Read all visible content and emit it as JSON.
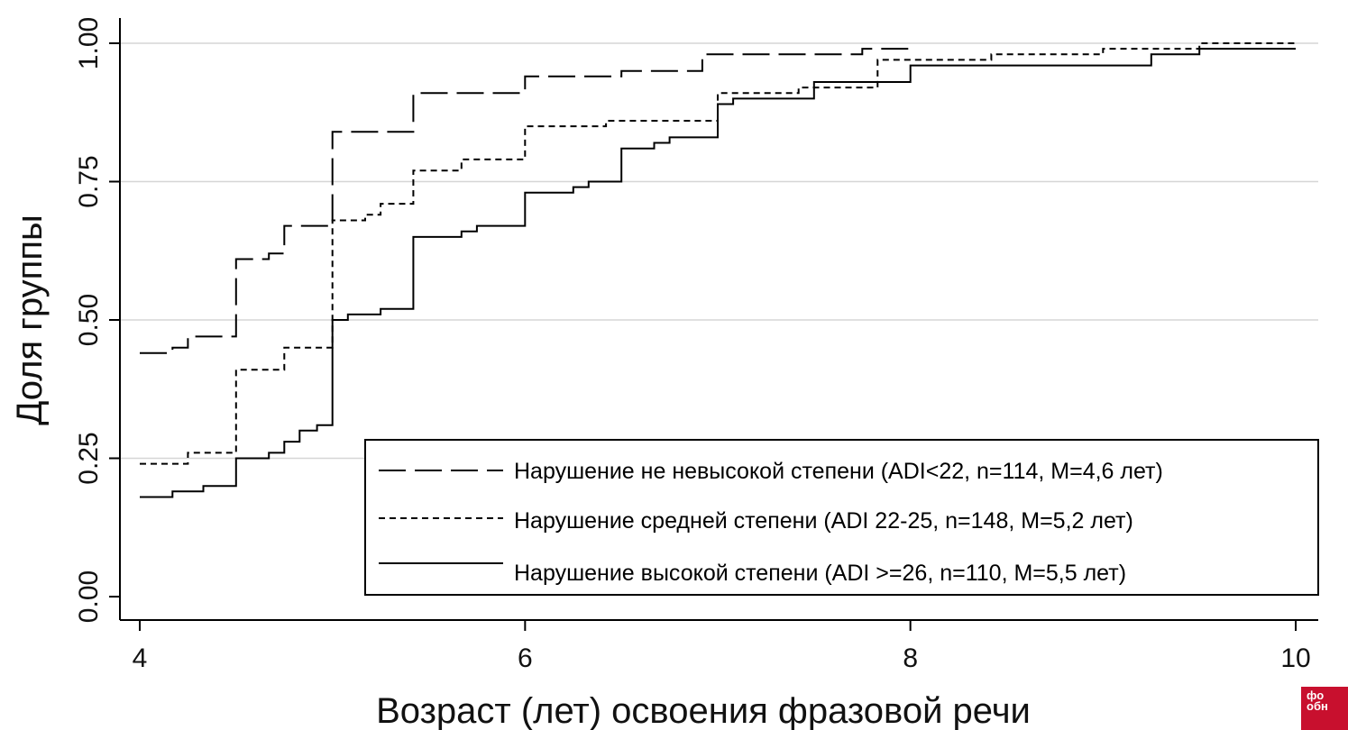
{
  "chart_data": {
    "type": "line",
    "step": true,
    "xlabel": "Возраст (лет) освоения фразовой речи",
    "ylabel": "Доля группы",
    "xlim": [
      4,
      10
    ],
    "ylim": [
      0,
      1
    ],
    "x_ticks": [
      "4",
      "6",
      "8",
      "10"
    ],
    "x_tick_values": [
      4,
      6,
      8,
      10
    ],
    "y_ticks": [
      "0.00",
      "0.25",
      "0.50",
      "0.75",
      "1.00"
    ],
    "y_tick_values": [
      0,
      0.25,
      0.5,
      0.75,
      1
    ],
    "grid": "horizontal",
    "legend_position": "bottom-right",
    "series": [
      {
        "name": "Нарушение не невысокой степени (ADI<22, n=114, M=4,6 лет)",
        "style": "long-dash",
        "points": [
          [
            4.0,
            0.44
          ],
          [
            4.17,
            0.44
          ],
          [
            4.17,
            0.45
          ],
          [
            4.25,
            0.45
          ],
          [
            4.25,
            0.47
          ],
          [
            4.5,
            0.47
          ],
          [
            4.5,
            0.61
          ],
          [
            4.67,
            0.61
          ],
          [
            4.67,
            0.62
          ],
          [
            4.75,
            0.62
          ],
          [
            4.75,
            0.67
          ],
          [
            5.0,
            0.67
          ],
          [
            5.0,
            0.84
          ],
          [
            5.42,
            0.84
          ],
          [
            5.42,
            0.91
          ],
          [
            6.0,
            0.91
          ],
          [
            6.0,
            0.94
          ],
          [
            6.5,
            0.94
          ],
          [
            6.5,
            0.95
          ],
          [
            6.92,
            0.95
          ],
          [
            6.92,
            0.98
          ],
          [
            7.75,
            0.98
          ],
          [
            7.75,
            0.99
          ],
          [
            8.0,
            0.99
          ],
          [
            8.0,
            1.0
          ]
        ]
      },
      {
        "name": "Нарушение средней степени (ADI 22-25, n=148, M=5,2 лет)",
        "style": "short-dash",
        "points": [
          [
            4.0,
            0.24
          ],
          [
            4.25,
            0.24
          ],
          [
            4.25,
            0.26
          ],
          [
            4.5,
            0.26
          ],
          [
            4.5,
            0.41
          ],
          [
            4.75,
            0.41
          ],
          [
            4.75,
            0.45
          ],
          [
            5.0,
            0.45
          ],
          [
            5.0,
            0.68
          ],
          [
            5.17,
            0.68
          ],
          [
            5.17,
            0.69
          ],
          [
            5.25,
            0.69
          ],
          [
            5.25,
            0.71
          ],
          [
            5.42,
            0.71
          ],
          [
            5.42,
            0.77
          ],
          [
            5.67,
            0.77
          ],
          [
            5.67,
            0.79
          ],
          [
            6.0,
            0.79
          ],
          [
            6.0,
            0.85
          ],
          [
            6.42,
            0.85
          ],
          [
            6.42,
            0.86
          ],
          [
            7.0,
            0.86
          ],
          [
            7.0,
            0.91
          ],
          [
            7.42,
            0.91
          ],
          [
            7.42,
            0.92
          ],
          [
            7.83,
            0.92
          ],
          [
            7.83,
            0.97
          ],
          [
            8.42,
            0.97
          ],
          [
            8.42,
            0.98
          ],
          [
            9.0,
            0.98
          ],
          [
            9.0,
            0.99
          ],
          [
            9.5,
            0.99
          ],
          [
            9.5,
            1.0
          ],
          [
            10.0,
            1.0
          ]
        ]
      },
      {
        "name": "Нарушение высокой степени (ADI >=26, n=110, M=5,5 лет)",
        "style": "solid",
        "points": [
          [
            4.0,
            0.18
          ],
          [
            4.17,
            0.18
          ],
          [
            4.17,
            0.19
          ],
          [
            4.33,
            0.19
          ],
          [
            4.33,
            0.2
          ],
          [
            4.5,
            0.2
          ],
          [
            4.5,
            0.25
          ],
          [
            4.67,
            0.25
          ],
          [
            4.67,
            0.26
          ],
          [
            4.75,
            0.26
          ],
          [
            4.75,
            0.28
          ],
          [
            4.83,
            0.28
          ],
          [
            4.83,
            0.3
          ],
          [
            4.92,
            0.3
          ],
          [
            4.92,
            0.31
          ],
          [
            5.0,
            0.31
          ],
          [
            5.0,
            0.5
          ],
          [
            5.08,
            0.5
          ],
          [
            5.08,
            0.51
          ],
          [
            5.25,
            0.51
          ],
          [
            5.25,
            0.52
          ],
          [
            5.42,
            0.52
          ],
          [
            5.42,
            0.65
          ],
          [
            5.67,
            0.65
          ],
          [
            5.67,
            0.66
          ],
          [
            5.75,
            0.66
          ],
          [
            5.75,
            0.67
          ],
          [
            6.0,
            0.67
          ],
          [
            6.0,
            0.73
          ],
          [
            6.25,
            0.73
          ],
          [
            6.25,
            0.74
          ],
          [
            6.33,
            0.74
          ],
          [
            6.33,
            0.75
          ],
          [
            6.5,
            0.75
          ],
          [
            6.5,
            0.81
          ],
          [
            6.67,
            0.81
          ],
          [
            6.67,
            0.82
          ],
          [
            6.75,
            0.82
          ],
          [
            6.75,
            0.83
          ],
          [
            7.0,
            0.83
          ],
          [
            7.0,
            0.89
          ],
          [
            7.08,
            0.89
          ],
          [
            7.08,
            0.9
          ],
          [
            7.5,
            0.9
          ],
          [
            7.5,
            0.93
          ],
          [
            8.0,
            0.93
          ],
          [
            8.0,
            0.96
          ],
          [
            9.25,
            0.96
          ],
          [
            9.25,
            0.98
          ],
          [
            9.5,
            0.98
          ],
          [
            9.5,
            0.99
          ],
          [
            10.0,
            0.99
          ]
        ]
      }
    ]
  },
  "logo": {
    "text": "фо обн"
  }
}
